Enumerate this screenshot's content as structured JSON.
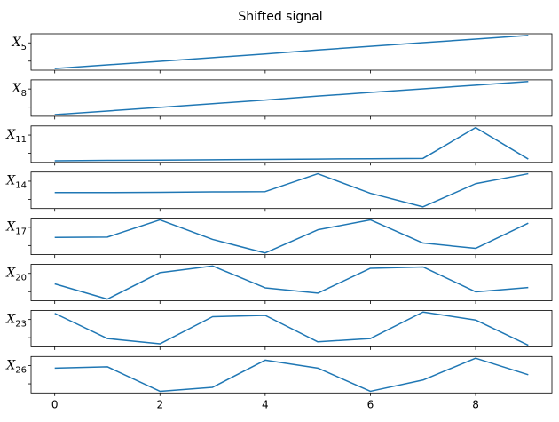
{
  "chart_data": {
    "type": "line",
    "title": "Shifted signal",
    "x": [
      0,
      1,
      2,
      3,
      4,
      5,
      6,
      7,
      8,
      9
    ],
    "xticks": [
      0,
      2,
      4,
      6,
      8
    ],
    "xtick_labels": [
      "0",
      "2",
      "4",
      "6",
      "8"
    ],
    "xlim": [
      -0.45,
      9.45
    ],
    "line_color": "#1f77b4",
    "grid": false,
    "series": [
      {
        "name": "X",
        "subscript": "5",
        "values": [
          0.0,
          0.11,
          0.22,
          0.33,
          0.44,
          0.56,
          0.67,
          0.78,
          0.89,
          1.0
        ]
      },
      {
        "name": "X",
        "subscript": "8",
        "values": [
          0.0,
          0.11,
          0.22,
          0.33,
          0.44,
          0.56,
          0.67,
          0.78,
          0.89,
          1.0
        ]
      },
      {
        "name": "X",
        "subscript": "11",
        "values": [
          0.0,
          0.01,
          0.02,
          0.03,
          0.04,
          0.05,
          0.06,
          0.07,
          1.0,
          0.05
        ]
      },
      {
        "name": "X",
        "subscript": "14",
        "values": [
          0.43,
          0.43,
          0.44,
          0.45,
          0.46,
          1.0,
          0.41,
          0.0,
          0.7,
          1.0
        ]
      },
      {
        "name": "X",
        "subscript": "17",
        "values": [
          0.47,
          0.48,
          1.0,
          0.41,
          0.0,
          0.7,
          1.0,
          0.3,
          0.14,
          0.9
        ]
      },
      {
        "name": "X",
        "subscript": "20",
        "values": [
          0.46,
          0.0,
          0.8,
          1.0,
          0.34,
          0.18,
          0.93,
          0.97,
          0.22,
          0.35
        ]
      },
      {
        "name": "X",
        "subscript": "23",
        "values": [
          0.96,
          0.2,
          0.04,
          0.86,
          0.9,
          0.1,
          0.2,
          1.0,
          0.76,
          0.0
        ]
      },
      {
        "name": "X",
        "subscript": "26",
        "values": [
          0.7,
          0.74,
          0.0,
          0.12,
          0.94,
          0.7,
          0.0,
          0.34,
          1.0,
          0.5
        ]
      }
    ]
  }
}
